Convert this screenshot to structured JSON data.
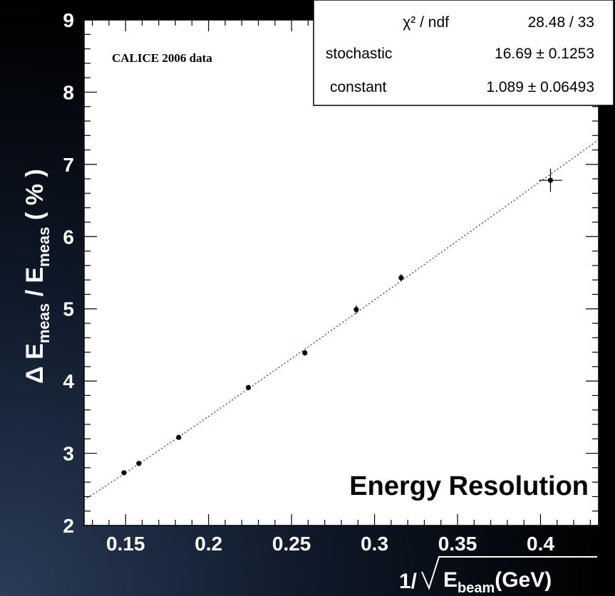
{
  "chart_data": {
    "type": "scatter",
    "annotation": "CALICE 2006 data",
    "overlay_title": "Energy Resolution",
    "ylabel": {
      "prefix": "Δ E",
      "sub1": "meas",
      "mid": " / E",
      "sub2": "meas",
      "suffix": " ( % )"
    },
    "xlabel": {
      "prefix": "1/",
      "main": "E",
      "sub": "beam",
      "suffix": "(GeV)"
    },
    "xlim": [
      0.125,
      0.435
    ],
    "ylim": [
      2,
      9
    ],
    "xticks": [
      "0.15",
      "0.2",
      "0.25",
      "0.3",
      "0.35",
      "0.4"
    ],
    "yticks": [
      "2",
      "3",
      "4",
      "5",
      "6",
      "7",
      "8",
      "9"
    ],
    "grid": false,
    "stats_box": {
      "rows": [
        {
          "label": "χ² / ndf",
          "value": "28.48 / 33"
        },
        {
          "label": "stochastic",
          "value": "16.69 ± 0.1253"
        },
        {
          "label": "constant",
          "value": "1.089 ± 0.06493"
        }
      ]
    },
    "series": [
      {
        "points": [
          {
            "x": 0.149,
            "y": 2.73,
            "yerr": 0.02
          },
          {
            "x": 0.158,
            "y": 2.86,
            "yerr": 0.02
          },
          {
            "x": 0.182,
            "y": 3.22,
            "yerr": 0.03
          },
          {
            "x": 0.224,
            "y": 3.91,
            "yerr": 0.03
          },
          {
            "x": 0.258,
            "y": 4.39,
            "yerr": 0.04
          },
          {
            "x": 0.289,
            "y": 4.99,
            "yerr": 0.06
          },
          {
            "x": 0.316,
            "y": 5.43,
            "yerr": 0.05
          },
          {
            "x": 0.406,
            "y": 6.78,
            "yerr": 0.16,
            "xerr": 0.007
          }
        ]
      }
    ],
    "fit": {
      "stochastic": 16.69,
      "constant": 1.089,
      "color": "#3b3bdc"
    }
  }
}
